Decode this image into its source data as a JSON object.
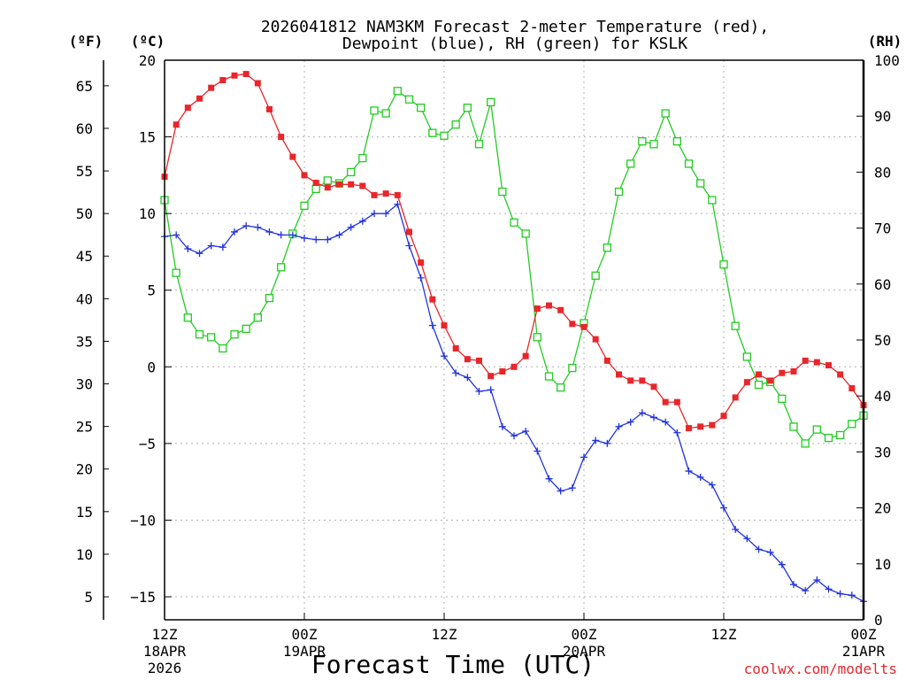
{
  "colors": {
    "temperature": "#e8262b",
    "dewpoint": "#2233dd",
    "rh": "#22cc22",
    "credit": "#e8262b"
  },
  "chart_data": {
    "type": "line",
    "title_line1": "2026041812 NAM3KM Forecast 2-meter Temperature (red),",
    "title_line2": "Dewpoint (blue), RH (green) for KSLK",
    "xlabel": "Forecast Time (UTC)",
    "credit": "coolwx.com/modelts",
    "unit_labels": {
      "fahrenheit": "(ºF)",
      "celsius": "(ºC)",
      "rh": "(RH)"
    },
    "x_range_hours": [
      0,
      60
    ],
    "x_ticks": [
      {
        "hour": 0,
        "lines": [
          "12Z",
          "18APR",
          "2026"
        ]
      },
      {
        "hour": 12,
        "lines": [
          "00Z",
          "19APR"
        ]
      },
      {
        "hour": 24,
        "lines": [
          "12Z"
        ]
      },
      {
        "hour": 36,
        "lines": [
          "00Z",
          "20APR"
        ]
      },
      {
        "hour": 48,
        "lines": [
          "12Z"
        ]
      },
      {
        "hour": 60,
        "lines": [
          "00Z",
          "21APR"
        ]
      }
    ],
    "celsius_axis": {
      "range": [
        -16.5,
        20
      ],
      "ticks": [
        20,
        15,
        10,
        5,
        0,
        -5,
        -10,
        -15
      ],
      "tick_labels": [
        "20",
        "15",
        "10",
        "5",
        "0",
        "−5",
        "−10",
        "−15"
      ]
    },
    "fahrenheit_axis": {
      "ticks": [
        65,
        60,
        55,
        50,
        45,
        40,
        35,
        30,
        25,
        20,
        15,
        10,
        5
      ],
      "tick_labels": [
        "65",
        "60",
        "55",
        "50",
        "45",
        "40",
        "35",
        "30",
        "25",
        "20",
        "15",
        "10",
        "5"
      ]
    },
    "rh_axis": {
      "range": [
        0,
        100
      ],
      "ticks": [
        100,
        90,
        80,
        70,
        60,
        50,
        40,
        30,
        20,
        10,
        0
      ],
      "tick_labels": [
        "100",
        "90",
        "80",
        "70",
        "60",
        "50",
        "40",
        "30",
        "20",
        "10",
        "0"
      ]
    },
    "series": [
      {
        "name": "Temperature (°C)",
        "key": "temp",
        "axis": "celsius",
        "marker": "filled-square",
        "points": [
          [
            0,
            12.4
          ],
          [
            1,
            15.8
          ],
          [
            2,
            16.9
          ],
          [
            3,
            17.5
          ],
          [
            4,
            18.2
          ],
          [
            5,
            18.7
          ],
          [
            6,
            19.0
          ],
          [
            7,
            19.1
          ],
          [
            8,
            18.5
          ],
          [
            9,
            16.8
          ],
          [
            10,
            15.0
          ],
          [
            11,
            13.7
          ],
          [
            12,
            12.5
          ],
          [
            13,
            12.0
          ],
          [
            14,
            11.7
          ],
          [
            15,
            11.9
          ],
          [
            16,
            11.9
          ],
          [
            17,
            11.8
          ],
          [
            18,
            11.2
          ],
          [
            19,
            11.3
          ],
          [
            20,
            11.2
          ],
          [
            21,
            8.8
          ],
          [
            22,
            6.8
          ],
          [
            23,
            4.4
          ],
          [
            24,
            2.7
          ],
          [
            25,
            1.2
          ],
          [
            26,
            0.5
          ],
          [
            27,
            0.4
          ],
          [
            28,
            -0.6
          ],
          [
            29,
            -0.3
          ],
          [
            30,
            0.0
          ],
          [
            31,
            0.7
          ],
          [
            32,
            3.8
          ],
          [
            33,
            4.0
          ],
          [
            34,
            3.7
          ],
          [
            35,
            2.8
          ],
          [
            36,
            2.6
          ],
          [
            37,
            1.8
          ],
          [
            38,
            0.4
          ],
          [
            39,
            -0.5
          ],
          [
            40,
            -0.9
          ],
          [
            41,
            -0.9
          ],
          [
            42,
            -1.3
          ],
          [
            43,
            -2.3
          ],
          [
            44,
            -2.3
          ],
          [
            45,
            -4.0
          ],
          [
            46,
            -3.9
          ],
          [
            47,
            -3.8
          ],
          [
            48,
            -3.2
          ],
          [
            49,
            -2.0
          ],
          [
            50,
            -1.0
          ],
          [
            51,
            -0.5
          ],
          [
            52,
            -0.9
          ],
          [
            53,
            -0.4
          ],
          [
            54,
            -0.3
          ],
          [
            55,
            0.4
          ],
          [
            56,
            0.3
          ],
          [
            57,
            0.1
          ],
          [
            58,
            -0.5
          ],
          [
            59,
            -1.4
          ],
          [
            60,
            -2.5
          ]
        ]
      },
      {
        "name": "Dewpoint (°C)",
        "key": "dew",
        "axis": "celsius",
        "marker": "plus",
        "points": [
          [
            0,
            8.5
          ],
          [
            1,
            8.6
          ],
          [
            2,
            7.7
          ],
          [
            3,
            7.4
          ],
          [
            4,
            7.9
          ],
          [
            5,
            7.8
          ],
          [
            6,
            8.8
          ],
          [
            7,
            9.2
          ],
          [
            8,
            9.1
          ],
          [
            9,
            8.8
          ],
          [
            10,
            8.6
          ],
          [
            11,
            8.6
          ],
          [
            12,
            8.4
          ],
          [
            13,
            8.3
          ],
          [
            14,
            8.3
          ],
          [
            15,
            8.6
          ],
          [
            16,
            9.1
          ],
          [
            17,
            9.5
          ],
          [
            18,
            10.0
          ],
          [
            19,
            10.0
          ],
          [
            20,
            10.6
          ],
          [
            21,
            7.9
          ],
          [
            22,
            5.8
          ],
          [
            23,
            2.7
          ],
          [
            24,
            0.7
          ],
          [
            25,
            -0.4
          ],
          [
            26,
            -0.7
          ],
          [
            27,
            -1.6
          ],
          [
            28,
            -1.5
          ],
          [
            29,
            -3.9
          ],
          [
            30,
            -4.5
          ],
          [
            31,
            -4.2
          ],
          [
            32,
            -5.5
          ],
          [
            33,
            -7.3
          ],
          [
            34,
            -8.1
          ],
          [
            35,
            -7.9
          ],
          [
            36,
            -5.9
          ],
          [
            37,
            -4.8
          ],
          [
            38,
            -5.0
          ],
          [
            39,
            -3.9
          ],
          [
            40,
            -3.6
          ],
          [
            41,
            -3.0
          ],
          [
            42,
            -3.3
          ],
          [
            43,
            -3.6
          ],
          [
            44,
            -4.3
          ],
          [
            45,
            -6.8
          ],
          [
            46,
            -7.2
          ],
          [
            47,
            -7.7
          ],
          [
            48,
            -9.2
          ],
          [
            49,
            -10.6
          ],
          [
            50,
            -11.2
          ],
          [
            51,
            -11.9
          ],
          [
            52,
            -12.1
          ],
          [
            53,
            -12.9
          ],
          [
            54,
            -14.2
          ],
          [
            55,
            -14.6
          ],
          [
            56,
            -13.9
          ],
          [
            57,
            -14.5
          ],
          [
            58,
            -14.8
          ],
          [
            59,
            -14.9
          ],
          [
            60,
            -15.3
          ]
        ]
      },
      {
        "name": "RH (%)",
        "key": "rh",
        "axis": "rh",
        "marker": "open-square",
        "points": [
          [
            0,
            75
          ],
          [
            1,
            62
          ],
          [
            2,
            54
          ],
          [
            3,
            51
          ],
          [
            4,
            50.5
          ],
          [
            5,
            48.5
          ],
          [
            6,
            51
          ],
          [
            7,
            52
          ],
          [
            8,
            54
          ],
          [
            9,
            57.5
          ],
          [
            10,
            63
          ],
          [
            11,
            69
          ],
          [
            12,
            74
          ],
          [
            13,
            77
          ],
          [
            14,
            78.5
          ],
          [
            15,
            78
          ],
          [
            16,
            80
          ],
          [
            17,
            82.5
          ],
          [
            18,
            91
          ],
          [
            19,
            90.5
          ],
          [
            20,
            94.5
          ],
          [
            21,
            93
          ],
          [
            22,
            91.5
          ],
          [
            23,
            87
          ],
          [
            24,
            86.5
          ],
          [
            25,
            88.5
          ],
          [
            26,
            91.5
          ],
          [
            27,
            85
          ],
          [
            28,
            92.5
          ],
          [
            29,
            76.5
          ],
          [
            30,
            71
          ],
          [
            31,
            69
          ],
          [
            32,
            50.5
          ],
          [
            33,
            43.5
          ],
          [
            34,
            41.5
          ],
          [
            35,
            45
          ],
          [
            36,
            53
          ],
          [
            37,
            61.5
          ],
          [
            38,
            66.5
          ],
          [
            39,
            76.5
          ],
          [
            40,
            81.5
          ],
          [
            41,
            85.5
          ],
          [
            42,
            85
          ],
          [
            43,
            90.5
          ],
          [
            44,
            85.5
          ],
          [
            45,
            81.5
          ],
          [
            46,
            78
          ],
          [
            47,
            75
          ],
          [
            48,
            63.5
          ],
          [
            49,
            52.5
          ],
          [
            50,
            47
          ],
          [
            51,
            42
          ],
          [
            52,
            42.5
          ],
          [
            53,
            39.5
          ],
          [
            54,
            34.5
          ],
          [
            55,
            31.5
          ],
          [
            56,
            34
          ],
          [
            57,
            32.5
          ],
          [
            58,
            33
          ],
          [
            59,
            35
          ],
          [
            60,
            36.5
          ]
        ]
      }
    ]
  }
}
